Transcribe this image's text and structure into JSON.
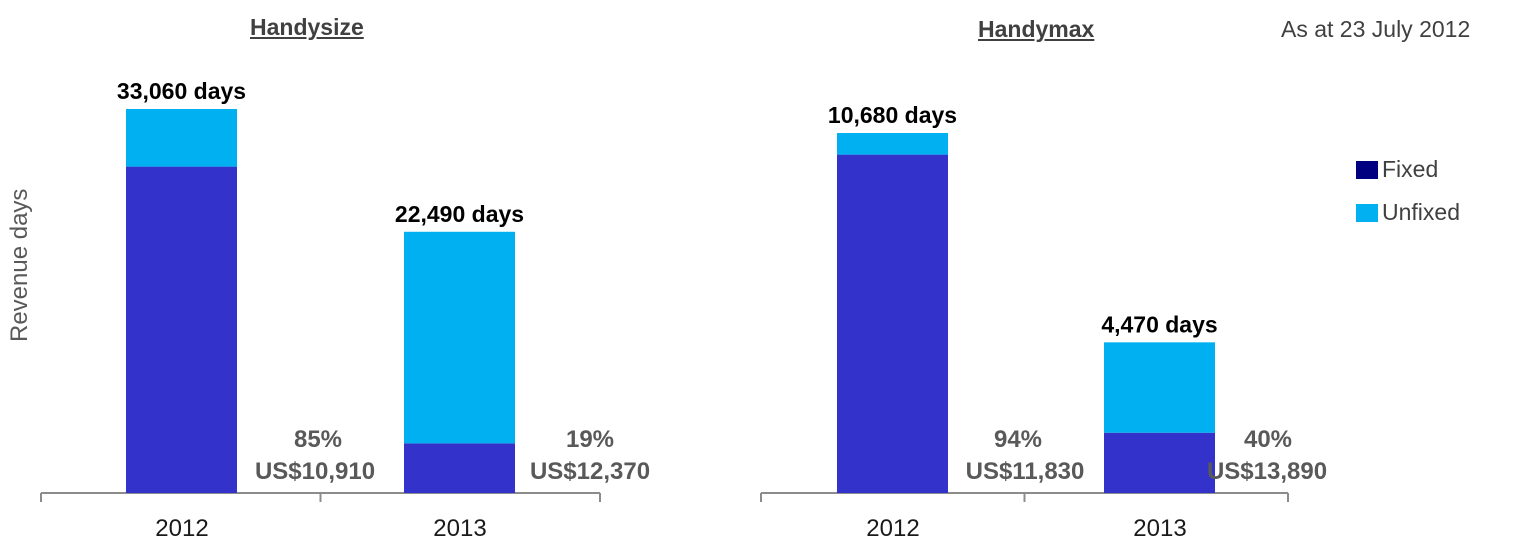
{
  "as_at": "As at 23 July 2012",
  "y_axis_label": "Revenue days",
  "legend": [
    {
      "label": "Fixed",
      "color": "#000080"
    },
    {
      "label": "Unfixed",
      "color": "#00B0F0"
    }
  ],
  "colors": {
    "fixed_bar": "#3333CC",
    "unfixed_bar": "#00B0F0",
    "axis": "#8C8C8C",
    "annotation": "#595959"
  },
  "chart_data": [
    {
      "type": "bar",
      "stacked": true,
      "title": "Handysize",
      "categories": [
        "2012",
        "2013"
      ],
      "ylabel": "Revenue days",
      "total_labels": [
        "33,060 days",
        "22,490 days"
      ],
      "annotations": [
        {
          "percent": "85%",
          "rate": "US$10,910"
        },
        {
          "percent": "19%",
          "rate": "US$12,370"
        }
      ],
      "series": [
        {
          "name": "Fixed",
          "values": [
            28100,
            4273
          ]
        },
        {
          "name": "Unfixed",
          "values": [
            4960,
            18217
          ]
        }
      ],
      "totals": [
        33060,
        22490
      ]
    },
    {
      "type": "bar",
      "stacked": true,
      "title": "Handymax",
      "categories": [
        "2012",
        "2013"
      ],
      "total_labels": [
        "10,680 days",
        "4,470  days"
      ],
      "annotations": [
        {
          "percent": "94%",
          "rate": "US$11,830"
        },
        {
          "percent": "40%",
          "rate": "US$13,890"
        }
      ],
      "series": [
        {
          "name": "Fixed",
          "values": [
            10039,
            1788
          ]
        },
        {
          "name": "Unfixed",
          "values": [
            641,
            2682
          ]
        }
      ],
      "totals": [
        10680,
        4470
      ]
    }
  ]
}
